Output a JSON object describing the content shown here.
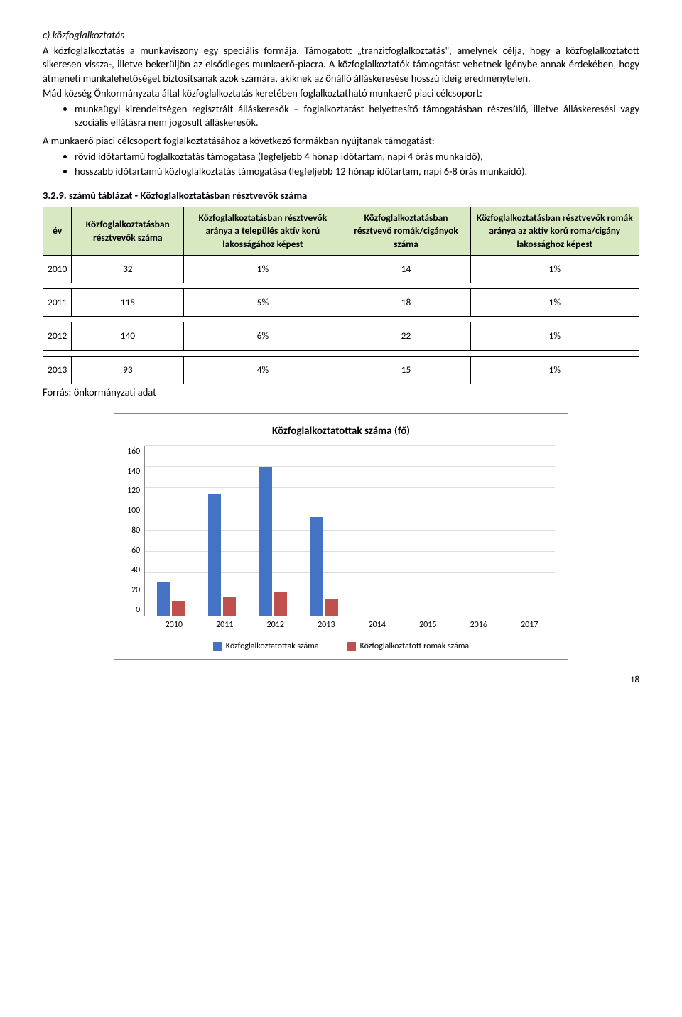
{
  "text": {
    "heading_c": "c) közfoglalkoztatás",
    "p1": "A közfoglalkoztatás a munkaviszony egy speciális formája. Támogatott „tranzitfoglalkoztatás\", amelynek célja, hogy a közfoglalkoztatott sikeresen vissza-, illetve bekerüljön az elsődleges munkaerő-piacra. A közfoglalkoztatók támogatást vehetnek igénybe annak érdekében, hogy átmeneti munkalehetőséget biztosítsanak azok számára, akiknek az önálló álláskeresése hosszú ideig eredménytelen.",
    "p2": "Mád község Önkormányzata által közfoglalkoztatás keretében foglalkoztatható munkaerő piaci célcsoport:",
    "li1": "munkaügyi kirendeltségen regisztrált álláskeresők – foglalkoztatást helyettesítő támogatásban részesülő, illetve álláskeresési vagy szociális ellátásra nem jogosult álláskeresők.",
    "p3": "A munkaerő piaci célcsoport foglalkoztatásához a következő formákban nyújtanak támogatást:",
    "li2": "rövid időtartamú foglalkoztatás támogatása (legfeljebb 4 hónap időtartam, napi 4 órás munkaidő),",
    "li3": "hosszabb időtartamú közfoglalkoztatás támogatása (legfeljebb 12 hónap időtartam, napi 6-8 órás munkaidő).",
    "table_title": "3.2.9. számú táblázat - Közfoglalkoztatásban résztvevők száma",
    "source": "Forrás: önkormányzati adat",
    "pagenum": "18"
  },
  "table": {
    "headers": [
      "év",
      "Közfoglalkoztatásban résztvevők száma",
      "Közfoglalkoztatásban résztvevők aránya a település aktív korú lakosságához képest",
      "Közfoglalkoztatásban résztvevő romák/cigányok száma",
      "Közfoglalkoztatásban résztvevők romák aránya az aktív korú roma/cigány lakossághoz képest"
    ],
    "rows": [
      [
        "2010",
        "32",
        "1%",
        "14",
        "1%"
      ],
      [
        "2011",
        "115",
        "5%",
        "18",
        "1%"
      ],
      [
        "2012",
        "140",
        "6%",
        "22",
        "1%"
      ],
      [
        "2013",
        "93",
        "4%",
        "15",
        "1%"
      ]
    ]
  },
  "chart": {
    "title": "Közfoglalkoztatottak száma (fő)",
    "ymax": 160,
    "ytick_step": 20,
    "yticks": [
      "160",
      "140",
      "120",
      "100",
      "80",
      "60",
      "40",
      "20",
      "0"
    ],
    "categories": [
      "2010",
      "2011",
      "2012",
      "2013",
      "2014",
      "2015",
      "2016",
      "2017"
    ],
    "series": [
      {
        "label": "Közfoglalkoztatottak száma",
        "color": "#4472c4",
        "values": [
          32,
          115,
          140,
          93,
          0,
          0,
          0,
          0
        ]
      },
      {
        "label": "Közfoglalkoztatott romák száma",
        "color": "#c0504d",
        "values": [
          14,
          18,
          22,
          15,
          0,
          0,
          0,
          0
        ]
      }
    ],
    "grid_color": "#dddddd"
  }
}
